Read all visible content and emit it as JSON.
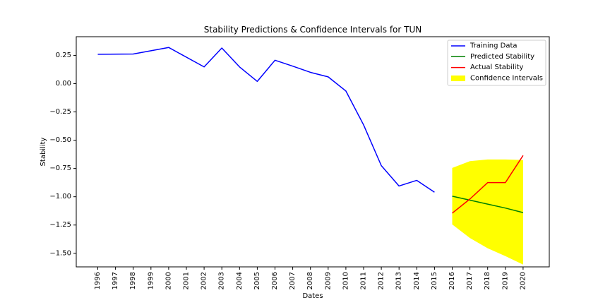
{
  "chart_data": {
    "type": "line",
    "title": "Stability Predictions & Confidence Intervals for TUN",
    "xlabel": "Dates",
    "ylabel": "Stability",
    "ylim": [
      -1.62,
      0.415
    ],
    "x_categories": [
      "1996",
      "1997",
      "1998",
      "1999",
      "2000",
      "2001",
      "2002",
      "2003",
      "2004",
      "2005",
      "2006",
      "2007",
      "2008",
      "2009",
      "2010",
      "2011",
      "2012",
      "2013",
      "2014",
      "2015",
      "2016",
      "2017",
      "2018",
      "2019",
      "2020"
    ],
    "y_ticks": [
      0.25,
      0.0,
      -0.25,
      -0.5,
      -0.75,
      -1.0,
      -1.25,
      -1.5
    ],
    "y_tick_labels": [
      "0.25",
      "0.00",
      "−0.25",
      "−0.50",
      "−0.75",
      "−1.00",
      "−1.25",
      "−1.50"
    ],
    "legend_position": "top-right",
    "grid": false,
    "series": [
      {
        "name": "Training Data",
        "color": "#0000ff",
        "x": [
          "1996",
          "1998",
          "2000",
          "2002",
          "2003",
          "2004",
          "2005",
          "2006",
          "2007",
          "2008",
          "2009",
          "2010",
          "2011",
          "2012",
          "2013",
          "2014",
          "2015"
        ],
        "values": [
          0.26,
          0.262,
          0.32,
          0.148,
          0.315,
          0.148,
          0.02,
          0.207,
          0.155,
          0.1,
          0.06,
          -0.065,
          -0.365,
          -0.725,
          -0.905,
          -0.855,
          -0.96
        ]
      },
      {
        "name": "Predicted Stability",
        "color": "#008000",
        "x": [
          "2016",
          "2017",
          "2018",
          "2019",
          "2020"
        ],
        "values": [
          -0.995,
          -1.03,
          -1.065,
          -1.1,
          -1.14
        ]
      },
      {
        "name": "Actual Stability",
        "color": "#ff0000",
        "x": [
          "2016",
          "2017",
          "2018",
          "2019",
          "2020"
        ],
        "values": [
          -1.145,
          -1.02,
          -0.875,
          -0.875,
          -0.635
        ]
      }
    ],
    "confidence_interval": {
      "name": "Confidence Intervals",
      "color": "#ffff00",
      "x": [
        "2016",
        "2017",
        "2018",
        "2019",
        "2020"
      ],
      "upper": [
        -0.745,
        -0.685,
        -0.67,
        -0.67,
        -0.675
      ],
      "lower": [
        -1.245,
        -1.365,
        -1.455,
        -1.525,
        -1.6
      ]
    }
  }
}
